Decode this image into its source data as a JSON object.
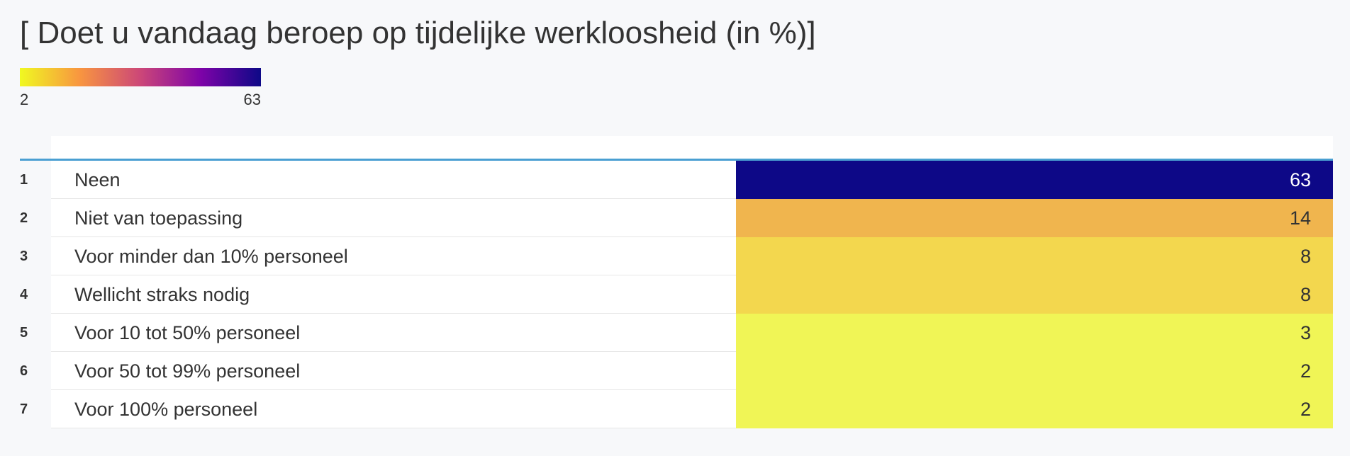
{
  "chart_data": {
    "type": "table",
    "title": "[ Doet u vandaag beroep op tijdelijke werkloosheid (in %)]",
    "color_scale": {
      "min": 2,
      "max": 63,
      "min_label": "2",
      "max_label": "63",
      "stops": [
        "#f0f921",
        "#f89540",
        "#cc4778",
        "#7e03a8",
        "#0d0887"
      ]
    },
    "rows": [
      {
        "rank": "1",
        "label": "Neen",
        "value": 63,
        "color": "#0d0887",
        "text_color": "#ffffff"
      },
      {
        "rank": "2",
        "label": "Niet van toepassing",
        "value": 14,
        "color": "#f0b54e",
        "text_color": "#333333"
      },
      {
        "rank": "3",
        "label": "Voor minder dan 10% personeel",
        "value": 8,
        "color": "#f3d74e",
        "text_color": "#333333"
      },
      {
        "rank": "4",
        "label": "Wellicht straks nodig",
        "value": 8,
        "color": "#f3d74e",
        "text_color": "#333333"
      },
      {
        "rank": "5",
        "label": "Voor 10 tot 50% personeel",
        "value": 3,
        "color": "#f0f556",
        "text_color": "#333333"
      },
      {
        "rank": "6",
        "label": "Voor 50 tot 99% personeel",
        "value": 2,
        "color": "#f0f556",
        "text_color": "#333333"
      },
      {
        "rank": "7",
        "label": "Voor 100% personeel",
        "value": 2,
        "color": "#f0f556",
        "text_color": "#333333"
      }
    ]
  }
}
